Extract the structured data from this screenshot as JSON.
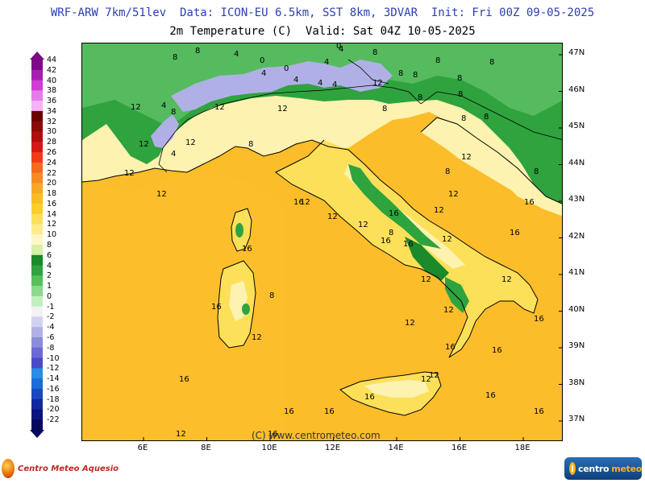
{
  "header": {
    "title_line1": "WRF-ARW 7km/51lev  Data: ICON-EU 6.5km, SST 8km, 3DVAR  Init: Fri 00Z 09-05-2025",
    "title_line2": "2m Temperature (C)  Valid: Sat 04Z 10-05-2025"
  },
  "colorbar": {
    "ticks": [
      "44",
      "42",
      "40",
      "38",
      "36",
      "34",
      "32",
      "30",
      "28",
      "26",
      "24",
      "22",
      "20",
      "18",
      "16",
      "14",
      "12",
      "10",
      "8",
      "6",
      "4",
      "2",
      "1",
      "0",
      "-1",
      "-2",
      "-4",
      "-6",
      "-8",
      "-10",
      "-12",
      "-14",
      "-16",
      "-18",
      "-20",
      "-22"
    ],
    "colors": [
      "#7a0a85",
      "#a81fb0",
      "#d03cd6",
      "#e77ae9",
      "#f4b3f4",
      "#6b0000",
      "#8c0a0a",
      "#b00f0f",
      "#d51818",
      "#f23a1a",
      "#f56a1e",
      "#f78b22",
      "#f9a828",
      "#fbbd22",
      "#fdcd2a",
      "#fde05a",
      "#fdec8a",
      "#fdf7c7",
      "#d8f0a8",
      "#1a8a2a",
      "#2ea33e",
      "#56c05a",
      "#8dd98c",
      "#c2efc0",
      "#f2f2f2",
      "#d2d2f0",
      "#b0b0e6",
      "#8c8cdc",
      "#6a6ad2",
      "#4b4bc8",
      "#2a8ce6",
      "#1a6cd6",
      "#1848c0",
      "#1028a0",
      "#0a1480",
      "#06085e"
    ]
  },
  "axes": {
    "lat_labels": [
      "47N",
      "46N",
      "45N",
      "44N",
      "43N",
      "42N",
      "41N",
      "40N",
      "39N",
      "38N",
      "37N"
    ],
    "lon_labels": [
      "6E",
      "8E",
      "10E",
      "12E",
      "14E",
      "16E",
      "18E"
    ]
  },
  "map_labels": [
    "8",
    "8",
    "4",
    "4",
    "0",
    "4",
    "4",
    "8",
    "8",
    "8",
    "8",
    "8",
    "4",
    "0",
    "0",
    "4",
    "4",
    "4",
    "12",
    "8",
    "8",
    "8",
    "8",
    "12",
    "12",
    "12",
    "8",
    "12",
    "8",
    "4",
    "12",
    "8",
    "8",
    "12",
    "12",
    "12",
    "8",
    "8",
    "16",
    "12",
    "12",
    "12",
    "8",
    "16",
    "12",
    "12",
    "12",
    "12",
    "16",
    "16",
    "12",
    "8",
    "12",
    "16",
    "16",
    "12",
    "16",
    "12",
    "16",
    "12",
    "16",
    "12",
    "16",
    "16",
    "16",
    "12",
    "16",
    "16",
    "16",
    "16",
    "16",
    "16"
  ],
  "watermark": "(C) www.centrometeo.com",
  "logos": {
    "left": "Centro Meteo Aquesio",
    "right_part1": "centro",
    "right_part2": "meteo"
  },
  "palette": {
    "sea_warm": "#fcbd2a",
    "land_warm": "#fde05a",
    "land_mild": "#fdf2b0",
    "land_cool": "#2ea33e",
    "land_green_light": "#5cc064",
    "mountain_cold": "#b0b0e6",
    "coast_line": "#000000"
  }
}
